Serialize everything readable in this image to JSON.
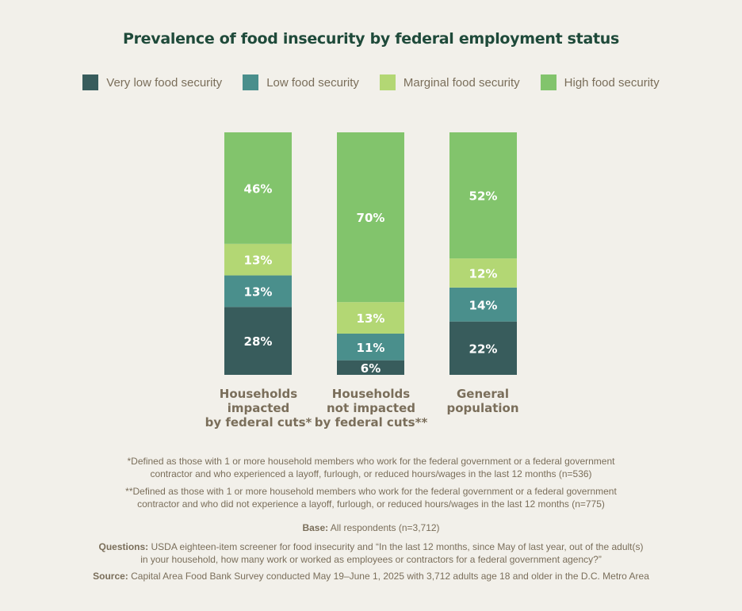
{
  "chart_data": {
    "type": "bar",
    "stacked": true,
    "orientation": "vertical",
    "title": "Prevalence of food insecurity by federal employment status",
    "categories": [
      "Households impacted by federal cuts*",
      "Households not impacted by federal cuts**",
      "General population"
    ],
    "category_lines": [
      [
        "Households",
        "impacted",
        "by federal cuts*"
      ],
      [
        "Households",
        "not impacted",
        "by federal cuts**"
      ],
      [
        "General",
        "population"
      ]
    ],
    "series": [
      {
        "name": "Very low food security",
        "color": "#385c5c",
        "values": [
          28,
          6,
          22
        ]
      },
      {
        "name": "Low food security",
        "color": "#4a8f8c",
        "values": [
          13,
          11,
          14
        ]
      },
      {
        "name": "Marginal food security",
        "color": "#b3d774",
        "values": [
          13,
          13,
          12
        ]
      },
      {
        "name": "High food security",
        "color": "#82c46c",
        "values": [
          46,
          70,
          52
        ]
      }
    ],
    "value_suffix": "%",
    "xlabel": "",
    "ylabel": "",
    "ylim": [
      0,
      100
    ],
    "grid": false,
    "legend": "top"
  },
  "footnotes": {
    "note1_line1": "*Defined as those with 1 or more household members who work for the federal government or a federal government",
    "note1_line2": "contractor and who experienced a layoff, furlough, or reduced hours/wages in the last 12 months (n=536)",
    "note2_line1": "**Defined as those with 1 or more household members who work for the federal government or a federal government",
    "note2_line2": "contractor and who did not experience a layoff, furlough, or reduced hours/wages in the last 12 months (n=775)",
    "base_label": "Base:",
    "base_text": " All respondents (n=3,712)",
    "questions_label": "Questions:",
    "questions_line1": " USDA eighteen-item screener for food insecurity and “In the last 12 months, since May of last year, out of the adult(s)",
    "questions_line2": "in your household, how many work or worked as employees or contractors for a federal government agency?”",
    "source_label": "Source:",
    "source_text": " Capital Area Food Bank Survey conducted May 19–June 1, 2025 with 3,712 adults age 18 and older in the D.C. Metro Area"
  }
}
